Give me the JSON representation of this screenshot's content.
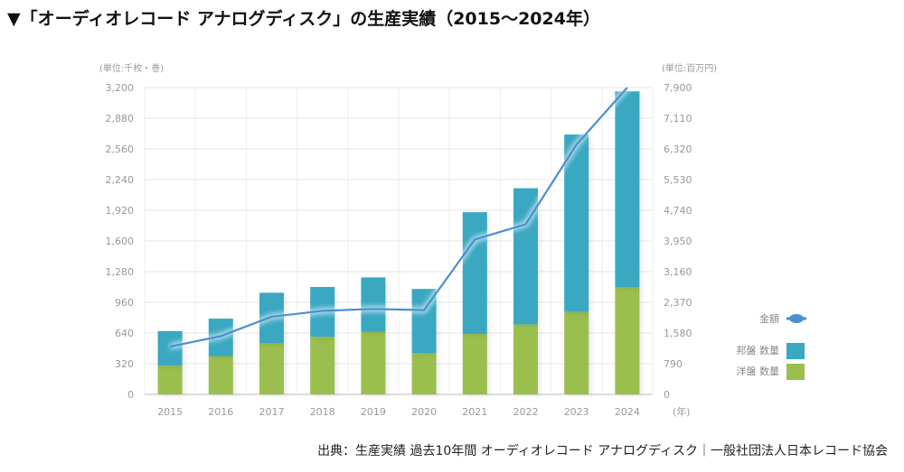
{
  "heading": "▼「オーディオレコード アナログディスク」の生産実績（2015〜2024年）",
  "source": "出典：生産実績 過去10年間 オーディオレコード アナログディスク｜一般社団法人日本レコード協会",
  "chart_data": {
    "type": "bar",
    "stacked": true,
    "categories": [
      "2015",
      "2016",
      "2017",
      "2018",
      "2019",
      "2020",
      "2021",
      "2022",
      "2023",
      "2024"
    ],
    "series": [
      {
        "name": "洋盤 数量",
        "axis": "left",
        "color": "#9bbf4e",
        "values": [
          300,
          400,
          530,
          600,
          650,
          430,
          630,
          730,
          860,
          1120
        ]
      },
      {
        "name": "邦盤 数量",
        "axis": "left",
        "color": "#3aa8c1",
        "values": [
          360,
          390,
          530,
          520,
          570,
          670,
          1270,
          1420,
          1850,
          2040
        ]
      },
      {
        "name": "金額",
        "type": "line",
        "axis": "right",
        "color": "#4a8fd0",
        "values": [
          1230,
          1500,
          2000,
          2150,
          2200,
          2170,
          3990,
          4380,
          6430,
          7900
        ]
      }
    ],
    "left_axis": {
      "unit": "(単位:千枚・巻)",
      "ylim": [
        0,
        3200
      ],
      "ticks": [
        "0",
        "320",
        "640",
        "960",
        "1,280",
        "1,600",
        "1,920",
        "2,240",
        "2,560",
        "2,880",
        "3,200"
      ]
    },
    "right_axis": {
      "unit": "(単位:百万円)",
      "ylim": [
        0,
        7900
      ],
      "ticks": [
        "0",
        "790",
        "1,580",
        "2,370",
        "3,160",
        "3,950",
        "4,740",
        "5,530",
        "6,320",
        "7,110",
        "7,900"
      ]
    },
    "x_unit": "(年)",
    "grid": true,
    "legend": [
      "金額",
      "邦盤 数量",
      "洋盤 数量"
    ],
    "legend_position": "right"
  }
}
